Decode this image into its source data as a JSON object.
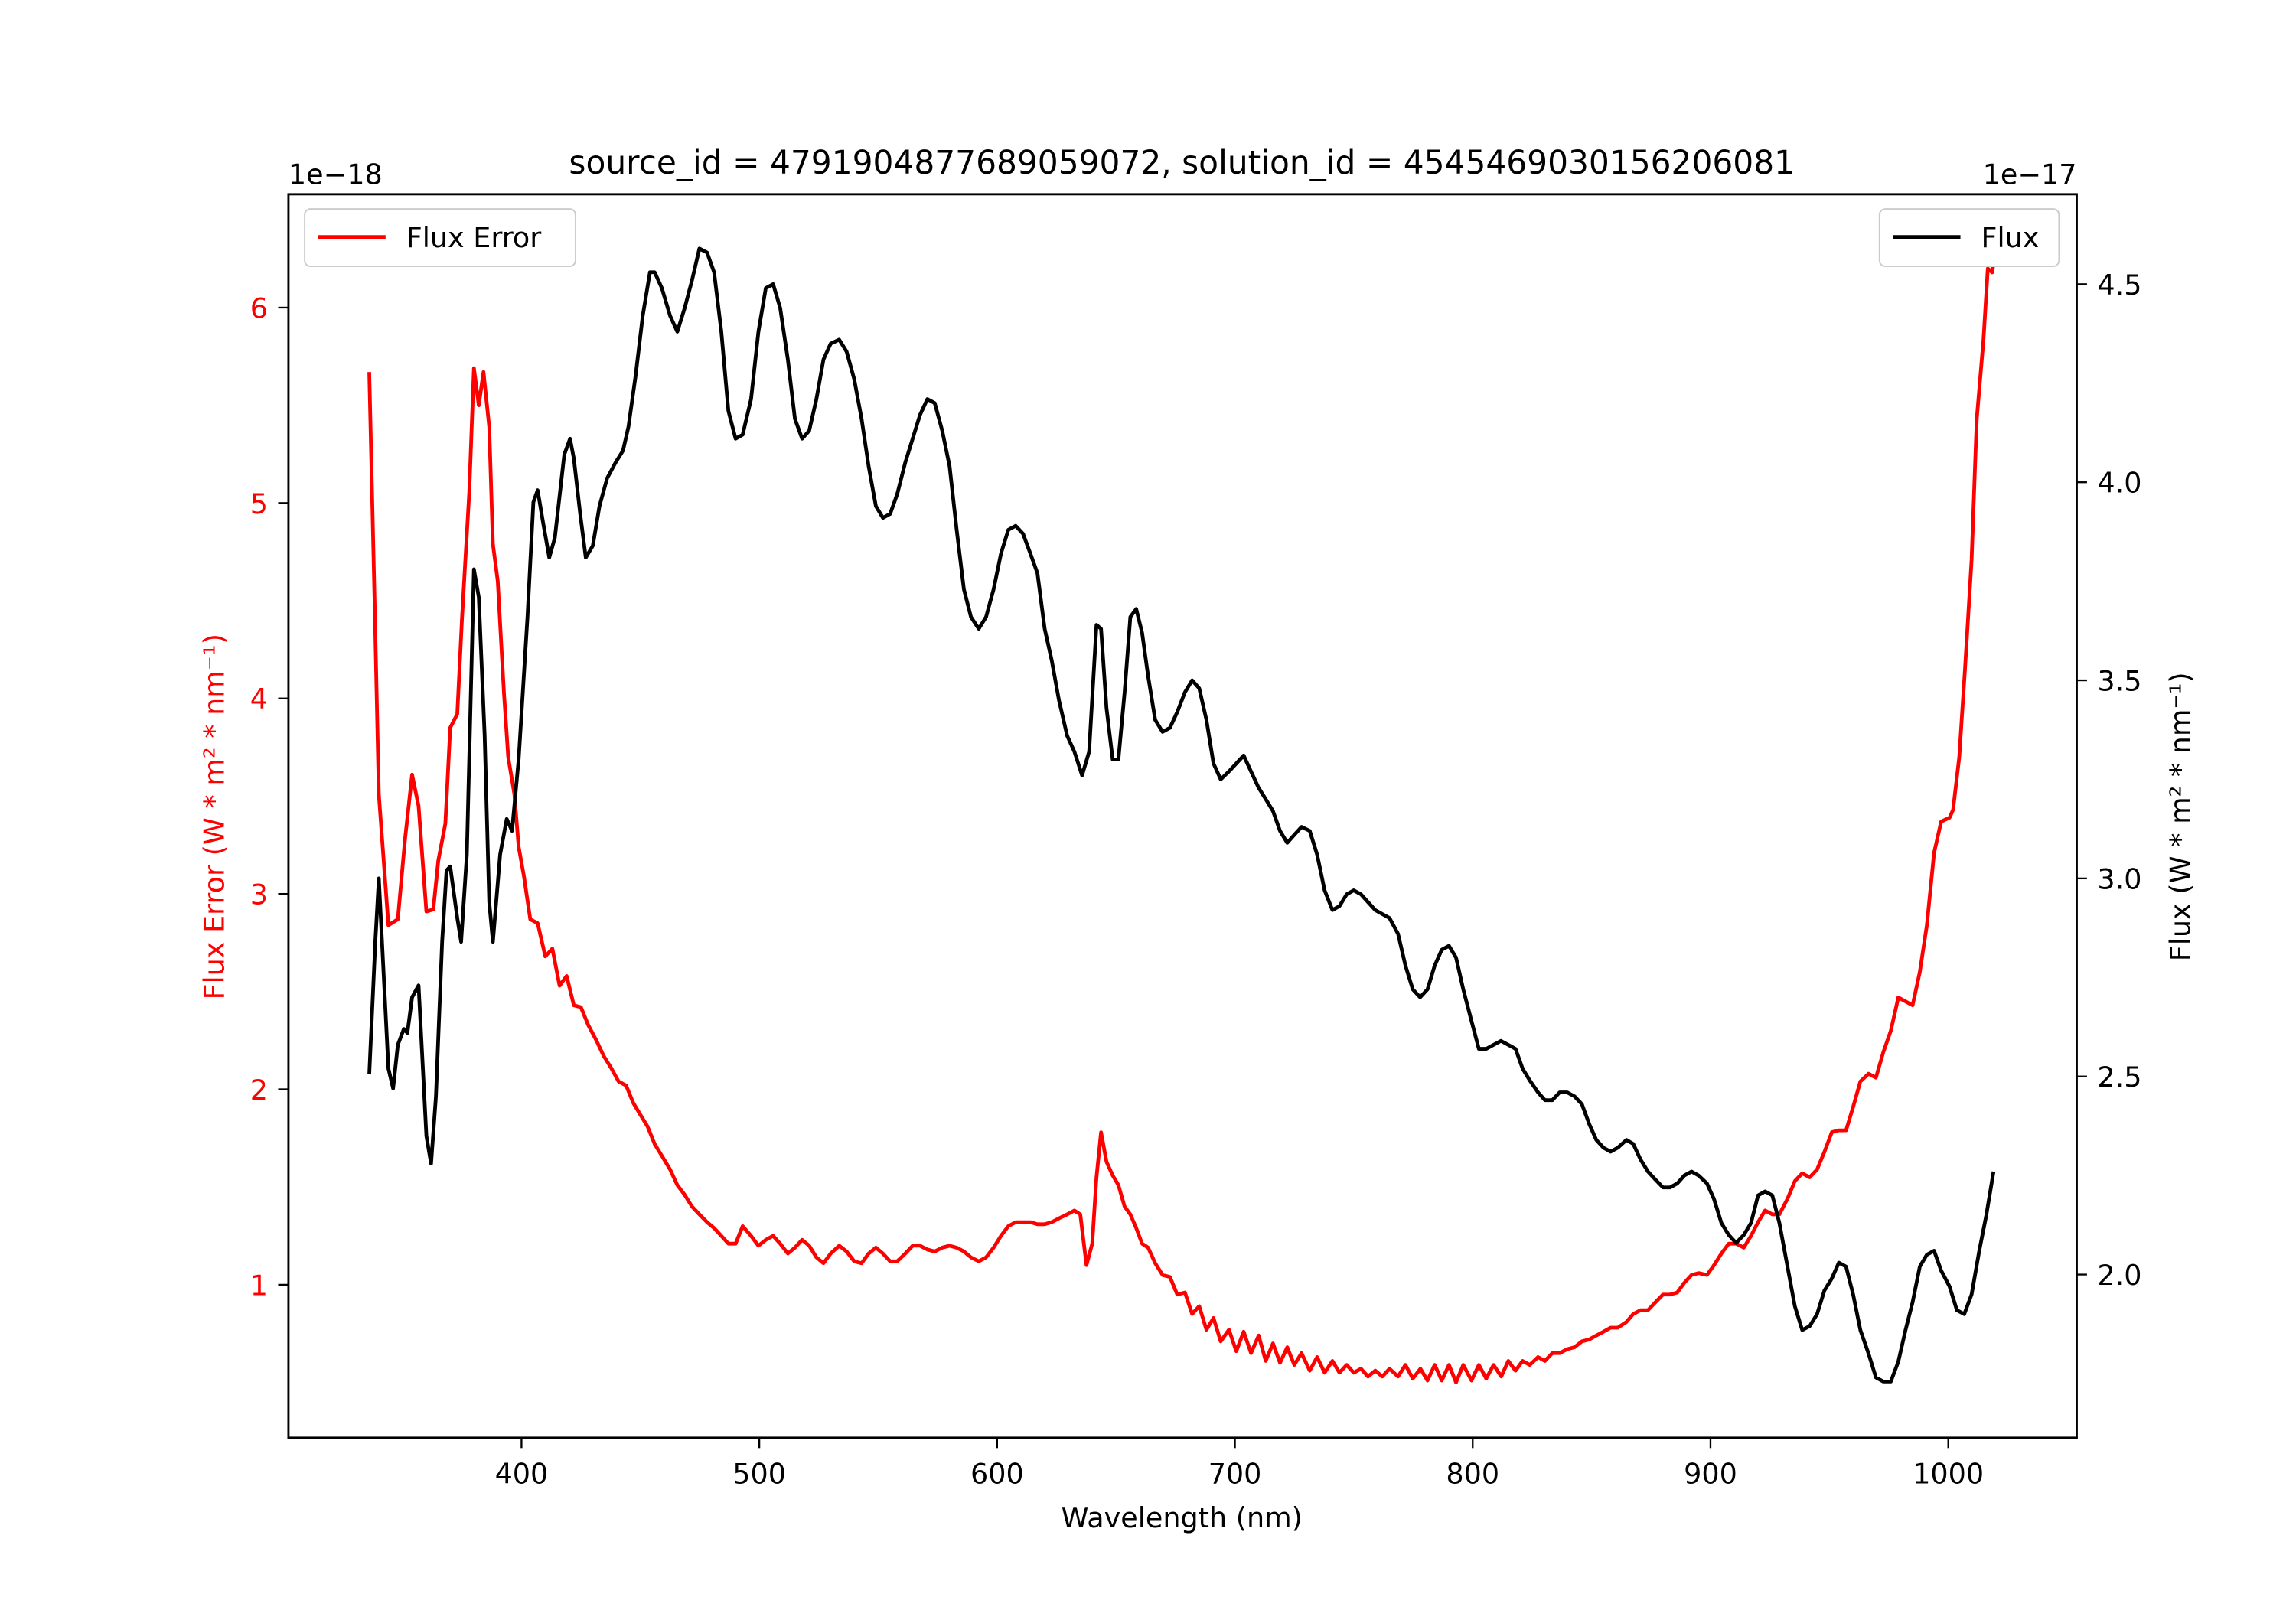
{
  "chart_data": {
    "type": "line",
    "title": "source_id = 4791904877689059072, solution_id = 4545469030156206081",
    "xlabel": "Wavelength (nm)",
    "xlim": [
      302,
      1054
    ],
    "xticks": [
      "400",
      "500",
      "600",
      "700",
      "800",
      "900",
      "1000"
    ],
    "left_axis": {
      "label": "Flux Error (W * m² * nm⁻¹)",
      "offset_text": "1e−18",
      "ylim": [
        0.217,
        6.58
      ],
      "ticks": [
        "1",
        "2",
        "3",
        "4",
        "5",
        "6"
      ],
      "color": "#ff0000"
    },
    "right_axis": {
      "label": "Flux (W * m² * nm⁻¹)",
      "offset_text": "1e−17",
      "ylim": [
        1.588,
        4.727
      ],
      "ticks": [
        "2.0",
        "2.5",
        "3.0",
        "3.5",
        "4.0",
        "4.5"
      ],
      "color": "#000000"
    },
    "series": [
      {
        "name": "Flux Error",
        "axis": "left",
        "color": "#ff0000",
        "legend": "top-left",
        "x": [
          336,
          338.5,
          340,
          344,
          348,
          351,
          354,
          356.7,
          360,
          362.9,
          365,
          368,
          370,
          373,
          375,
          378,
          380,
          382,
          384,
          386.4,
          388,
          390,
          392.6,
          394.4,
          397,
          398.8,
          401,
          403.7,
          406.8,
          410,
          413,
          416,
          419,
          422,
          425,
          428,
          431.5,
          434.6,
          437.7,
          440.8,
          444,
          447,
          450,
          453,
          456,
          459,
          462.5,
          465.5,
          468.6,
          471.7,
          474.8,
          478,
          481,
          484,
          487,
          490,
          493,
          496.5,
          499.6,
          502.7,
          505.8,
          508.8,
          512,
          515,
          518,
          521,
          524,
          527,
          530,
          533.6,
          536.7,
          539.9,
          543,
          546,
          549,
          552,
          555,
          558,
          561.4,
          564.5,
          567.6,
          570.7,
          573.8,
          576.9,
          580,
          583,
          586,
          589,
          592.3,
          595.4,
          598.5,
          601.6,
          604.7,
          607.8,
          610.9,
          614,
          617,
          620,
          623,
          626,
          629.5,
          632.5,
          635,
          637.6,
          640,
          641.8,
          643.7,
          646,
          648.6,
          651,
          653.6,
          656,
          658.5,
          661,
          663.5,
          666.5,
          669.6,
          672.7,
          675.8,
          679,
          682,
          685,
          688,
          691,
          694,
          697.5,
          700.6,
          703.7,
          706.8,
          710,
          713,
          716,
          719,
          722,
          725,
          728,
          731.5,
          734.6,
          737.7,
          741,
          744,
          747,
          750,
          753,
          756,
          759,
          762,
          765,
          768.6,
          771.7,
          774.8,
          778,
          781,
          784,
          787,
          790,
          793,
          796,
          799.5,
          802.6,
          805.7,
          808.8,
          812,
          815,
          818,
          821,
          824,
          827.5,
          830.4,
          833.5,
          836.6,
          839.7,
          842.8,
          845.9,
          849,
          852,
          855,
          858,
          861,
          864.7,
          867.5,
          870.6,
          873.7,
          876.8,
          880,
          883,
          886,
          889,
          892,
          895,
          898.5,
          901.5,
          904.6,
          907.7,
          910.8,
          914,
          917,
          920,
          923,
          926,
          929,
          932.4,
          935.5,
          938.6,
          941.7,
          944.8,
          947.9,
          951,
          954,
          957,
          960,
          963,
          966.5,
          969.6,
          972.7,
          975.8,
          979,
          982,
          985,
          988,
          991,
          994,
          997,
          1000.5,
          1002,
          1004.6,
          1007,
          1009.8,
          1012,
          1014.8,
          1016.6,
          1018.5,
          1019.8
        ],
        "y": [
          5.67,
          4.34,
          3.51,
          2.84,
          2.87,
          3.28,
          3.61,
          3.45,
          2.91,
          2.92,
          3.17,
          3.36,
          3.85,
          3.92,
          4.41,
          5.05,
          5.69,
          5.5,
          5.67,
          5.39,
          4.79,
          4.6,
          4.03,
          3.7,
          3.51,
          3.24,
          3.09,
          2.87,
          2.85,
          2.68,
          2.72,
          2.53,
          2.58,
          2.43,
          2.42,
          2.33,
          2.25,
          2.17,
          2.11,
          2.04,
          2.02,
          1.93,
          1.87,
          1.81,
          1.72,
          1.66,
          1.59,
          1.51,
          1.46,
          1.4,
          1.36,
          1.32,
          1.29,
          1.25,
          1.21,
          1.21,
          1.3,
          1.25,
          1.2,
          1.23,
          1.25,
          1.21,
          1.16,
          1.19,
          1.23,
          1.2,
          1.14,
          1.11,
          1.16,
          1.2,
          1.17,
          1.12,
          1.11,
          1.16,
          1.19,
          1.16,
          1.12,
          1.12,
          1.16,
          1.2,
          1.2,
          1.18,
          1.17,
          1.19,
          1.2,
          1.19,
          1.17,
          1.14,
          1.12,
          1.14,
          1.19,
          1.25,
          1.3,
          1.32,
          1.32,
          1.32,
          1.31,
          1.31,
          1.32,
          1.34,
          1.36,
          1.38,
          1.36,
          1.1,
          1.21,
          1.55,
          1.78,
          1.63,
          1.56,
          1.51,
          1.4,
          1.36,
          1.29,
          1.21,
          1.19,
          1.11,
          1.05,
          1.04,
          0.95,
          0.96,
          0.85,
          0.89,
          0.77,
          0.83,
          0.71,
          0.77,
          0.66,
          0.76,
          0.65,
          0.74,
          0.61,
          0.7,
          0.6,
          0.68,
          0.59,
          0.65,
          0.56,
          0.63,
          0.55,
          0.61,
          0.55,
          0.59,
          0.55,
          0.57,
          0.53,
          0.56,
          0.53,
          0.57,
          0.53,
          0.59,
          0.52,
          0.57,
          0.51,
          0.59,
          0.51,
          0.59,
          0.5,
          0.59,
          0.51,
          0.59,
          0.52,
          0.59,
          0.53,
          0.61,
          0.56,
          0.61,
          0.59,
          0.63,
          0.61,
          0.65,
          0.65,
          0.67,
          0.68,
          0.71,
          0.72,
          0.74,
          0.76,
          0.78,
          0.78,
          0.81,
          0.85,
          0.87,
          0.87,
          0.91,
          0.95,
          0.95,
          0.96,
          1.01,
          1.05,
          1.06,
          1.05,
          1.1,
          1.16,
          1.21,
          1.21,
          1.19,
          1.25,
          1.32,
          1.38,
          1.36,
          1.36,
          1.44,
          1.53,
          1.57,
          1.55,
          1.59,
          1.68,
          1.78,
          1.79,
          1.79,
          1.91,
          2.04,
          2.08,
          2.06,
          2.19,
          2.3,
          2.47,
          2.45,
          2.43,
          2.6,
          2.84,
          3.21,
          3.37,
          3.39,
          3.43,
          3.7,
          4.15,
          4.71,
          5.43,
          5.84,
          6.2,
          6.18,
          6.29
        ]
      },
      {
        "name": "Flux",
        "axis": "right",
        "color": "#000000",
        "legend": "top-right",
        "x": [
          336,
          338.5,
          340,
          344,
          346,
          348,
          350.5,
          352,
          354,
          356.7,
          360,
          362,
          364,
          366.6,
          368.5,
          370,
          373,
          374.6,
          377,
          380,
          382,
          384.5,
          386.4,
          388,
          391,
          393.8,
          396,
          398.8,
          402.5,
          405,
          406.8,
          409,
          411.7,
          414,
          418,
          420.4,
          422,
          424.7,
          427,
          430,
          432.8,
          436,
          439.6,
          442.7,
          445,
          448,
          451,
          454,
          456,
          459,
          462.5,
          465.5,
          468.6,
          471.7,
          474.8,
          478,
          481,
          484,
          487,
          490,
          493,
          496.5,
          499.6,
          502.7,
          505.8,
          508.8,
          512,
          515,
          518,
          521,
          524,
          527,
          530,
          533.6,
          536.7,
          539.9,
          543,
          546,
          549,
          552,
          555,
          558,
          561.4,
          564.5,
          567.6,
          570.7,
          573.8,
          576.9,
          580,
          583,
          586,
          589,
          592.3,
          595.4,
          598.5,
          601.6,
          604.7,
          607.8,
          610.9,
          614,
          617,
          620,
          623,
          626,
          629.5,
          632.5,
          635.7,
          638.7,
          641.8,
          643.7,
          646,
          648.6,
          651,
          653.6,
          656,
          658.5,
          661,
          663.5,
          666.5,
          669.6,
          672.7,
          675.8,
          679,
          682,
          685,
          688,
          691,
          694,
          697.5,
          700.6,
          703.7,
          706.8,
          709.9,
          713,
          716,
          719,
          722,
          725,
          728,
          731.5,
          734.6,
          737.7,
          741,
          744,
          747,
          750,
          753,
          756,
          759,
          762,
          765,
          768.6,
          771.7,
          774.8,
          777.9,
          781,
          784,
          787,
          790,
          793,
          796,
          799.5,
          802.6,
          805.7,
          808.8,
          811.9,
          815,
          818,
          821,
          824,
          827.5,
          830.4,
          833.5,
          836.6,
          839.7,
          842.8,
          845.9,
          849,
          852,
          855,
          858,
          861,
          864.7,
          867.5,
          870.6,
          873.7,
          876.8,
          880,
          883,
          886,
          889,
          892,
          895,
          898.5,
          901.5,
          904.6,
          907.7,
          910.8,
          914,
          917,
          920,
          923,
          926,
          929,
          932.4,
          935.5,
          938.6,
          941.7,
          944.8,
          947.9,
          951,
          954,
          957,
          960,
          963,
          966.5,
          969.6,
          972.7,
          975.8,
          979,
          982,
          985,
          988,
          991,
          994,
          997,
          1000.5,
          1003.6,
          1006.7,
          1009.8,
          1013,
          1016,
          1019
        ],
        "y": [
          2.505,
          2.84,
          3.0,
          2.52,
          2.47,
          2.58,
          2.62,
          2.61,
          2.7,
          2.73,
          2.35,
          2.28,
          2.45,
          2.84,
          3.02,
          3.03,
          2.9,
          2.84,
          3.06,
          3.78,
          3.71,
          3.36,
          2.94,
          2.84,
          3.06,
          3.15,
          3.12,
          3.3,
          3.66,
          3.95,
          3.98,
          3.9,
          3.81,
          3.86,
          4.07,
          4.11,
          4.06,
          3.92,
          3.81,
          3.84,
          3.94,
          4.01,
          4.05,
          4.08,
          4.14,
          4.27,
          4.42,
          4.53,
          4.53,
          4.49,
          4.42,
          4.38,
          4.44,
          4.51,
          4.59,
          4.58,
          4.53,
          4.38,
          4.18,
          4.11,
          4.12,
          4.21,
          4.38,
          4.49,
          4.5,
          4.44,
          4.31,
          4.16,
          4.11,
          4.13,
          4.21,
          4.31,
          4.35,
          4.36,
          4.33,
          4.26,
          4.16,
          4.04,
          3.94,
          3.91,
          3.92,
          3.97,
          4.05,
          4.11,
          4.17,
          4.21,
          4.2,
          4.13,
          4.04,
          3.88,
          3.73,
          3.66,
          3.63,
          3.66,
          3.73,
          3.82,
          3.88,
          3.89,
          3.87,
          3.82,
          3.77,
          3.63,
          3.55,
          3.45,
          3.36,
          3.32,
          3.26,
          3.32,
          3.64,
          3.63,
          3.43,
          3.3,
          3.3,
          3.47,
          3.66,
          3.68,
          3.62,
          3.51,
          3.4,
          3.37,
          3.38,
          3.42,
          3.47,
          3.5,
          3.48,
          3.4,
          3.29,
          3.25,
          3.27,
          3.29,
          3.31,
          3.27,
          3.23,
          3.2,
          3.17,
          3.12,
          3.09,
          3.11,
          3.13,
          3.12,
          3.06,
          2.97,
          2.92,
          2.93,
          2.96,
          2.97,
          2.96,
          2.94,
          2.92,
          2.91,
          2.9,
          2.86,
          2.78,
          2.72,
          2.7,
          2.72,
          2.78,
          2.82,
          2.83,
          2.8,
          2.72,
          2.64,
          2.57,
          2.57,
          2.58,
          2.59,
          2.58,
          2.57,
          2.52,
          2.49,
          2.46,
          2.44,
          2.44,
          2.46,
          2.46,
          2.45,
          2.43,
          2.38,
          2.34,
          2.32,
          2.31,
          2.32,
          2.34,
          2.33,
          2.29,
          2.26,
          2.24,
          2.22,
          2.22,
          2.23,
          2.25,
          2.26,
          2.25,
          2.23,
          2.19,
          2.13,
          2.1,
          2.08,
          2.1,
          2.13,
          2.2,
          2.21,
          2.2,
          2.13,
          2.02,
          1.92,
          1.86,
          1.87,
          1.9,
          1.96,
          1.99,
          2.03,
          2.02,
          1.95,
          1.86,
          1.8,
          1.74,
          1.73,
          1.73,
          1.78,
          1.86,
          1.93,
          2.02,
          2.05,
          2.06,
          2.01,
          1.97,
          1.91,
          1.9,
          1.95,
          2.06,
          2.15,
          2.26
        ]
      }
    ]
  }
}
